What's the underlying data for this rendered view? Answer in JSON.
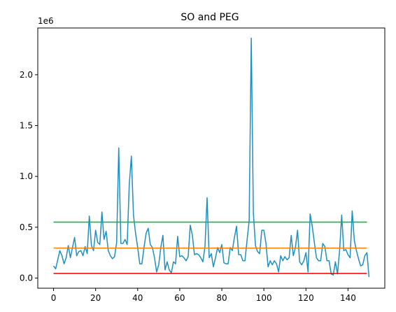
{
  "chart_data": {
    "type": "line",
    "title": "SO and PEG",
    "xlabel": "",
    "ylabel": "",
    "offset_text": "1e6",
    "xlim": [
      -7.5,
      157.5
    ],
    "ylim": [
      -0.1,
      2.46
    ],
    "grid": false,
    "x_ticks": [
      0,
      20,
      40,
      60,
      80,
      100,
      120,
      140
    ],
    "x_tick_labels": [
      "0",
      "20",
      "40",
      "60",
      "80",
      "100",
      "120",
      "140"
    ],
    "y_ticks": [
      0.0,
      0.5,
      1.0,
      1.5,
      2.0
    ],
    "y_tick_labels": [
      "0.0",
      "0.5",
      "1.0",
      "1.5",
      "2.0"
    ],
    "series": [
      {
        "color": "#1f8fbf",
        "x": [
          0,
          1,
          2,
          3,
          4,
          5,
          6,
          7,
          8,
          9,
          10,
          11,
          12,
          13,
          14,
          15,
          16,
          17,
          18,
          19,
          20,
          21,
          22,
          23,
          24,
          25,
          26,
          27,
          28,
          29,
          30,
          31,
          32,
          33,
          34,
          35,
          36,
          37,
          38,
          39,
          40,
          41,
          42,
          43,
          44,
          45,
          46,
          47,
          48,
          49,
          50,
          51,
          52,
          53,
          54,
          55,
          56,
          57,
          58,
          59,
          60,
          61,
          62,
          63,
          64,
          65,
          66,
          67,
          68,
          69,
          70,
          71,
          72,
          73,
          74,
          75,
          76,
          77,
          78,
          79,
          80,
          81,
          82,
          83,
          84,
          85,
          86,
          87,
          88,
          89,
          90,
          91,
          92,
          93,
          94,
          95,
          96,
          97,
          98,
          99,
          100,
          101,
          102,
          103,
          104,
          105,
          106,
          107,
          108,
          109,
          110,
          111,
          112,
          113,
          114,
          115,
          116,
          117,
          118,
          119,
          120,
          121,
          122,
          123,
          124,
          125,
          126,
          127,
          128,
          129,
          130,
          131,
          132,
          133,
          134,
          135,
          136,
          137,
          138,
          139,
          140,
          141,
          142,
          143,
          144,
          145,
          146,
          147,
          148,
          149,
          150
        ],
        "values": [
          0.12,
          0.09,
          0.18,
          0.27,
          0.22,
          0.14,
          0.2,
          0.32,
          0.2,
          0.3,
          0.4,
          0.22,
          0.26,
          0.27,
          0.22,
          0.31,
          0.24,
          0.61,
          0.32,
          0.27,
          0.47,
          0.35,
          0.33,
          0.65,
          0.38,
          0.46,
          0.27,
          0.22,
          0.19,
          0.21,
          0.35,
          1.28,
          0.34,
          0.34,
          0.38,
          0.33,
          0.92,
          1.2,
          0.62,
          0.44,
          0.3,
          0.14,
          0.14,
          0.3,
          0.44,
          0.49,
          0.33,
          0.3,
          0.2,
          0.06,
          0.13,
          0.3,
          0.42,
          0.08,
          0.16,
          0.08,
          0.05,
          0.16,
          0.14,
          0.41,
          0.21,
          0.22,
          0.2,
          0.17,
          0.21,
          0.52,
          0.42,
          0.23,
          0.24,
          0.23,
          0.2,
          0.16,
          0.31,
          0.79,
          0.2,
          0.24,
          0.11,
          0.2,
          0.3,
          0.25,
          0.33,
          0.15,
          0.14,
          0.14,
          0.3,
          0.27,
          0.4,
          0.51,
          0.23,
          0.23,
          0.17,
          0.17,
          0.37,
          0.56,
          2.36,
          0.64,
          0.32,
          0.26,
          0.24,
          0.47,
          0.47,
          0.34,
          0.11,
          0.17,
          0.13,
          0.17,
          0.14,
          0.06,
          0.22,
          0.17,
          0.21,
          0.18,
          0.2,
          0.42,
          0.22,
          0.3,
          0.47,
          0.16,
          0.13,
          0.17,
          0.25,
          0.06,
          0.63,
          0.51,
          0.35,
          0.2,
          0.17,
          0.17,
          0.34,
          0.31,
          0.17,
          0.17,
          0.04,
          0.03,
          0.16,
          0.04,
          0.27,
          0.62,
          0.27,
          0.28,
          0.23,
          0.2,
          0.66,
          0.37,
          0.27,
          0.19,
          0.12,
          0.13,
          0.22,
          0.25,
          0.01
        ]
      },
      {
        "color": "#ff8000",
        "x": [
          0,
          149
        ],
        "values": [
          0.295,
          0.295
        ]
      },
      {
        "color": "#00b33c",
        "x": [
          0,
          149
        ],
        "values": [
          0.55,
          0.55
        ]
      },
      {
        "color": "#e60000",
        "x": [
          0,
          149
        ],
        "values": [
          0.045,
          0.045
        ]
      }
    ]
  }
}
